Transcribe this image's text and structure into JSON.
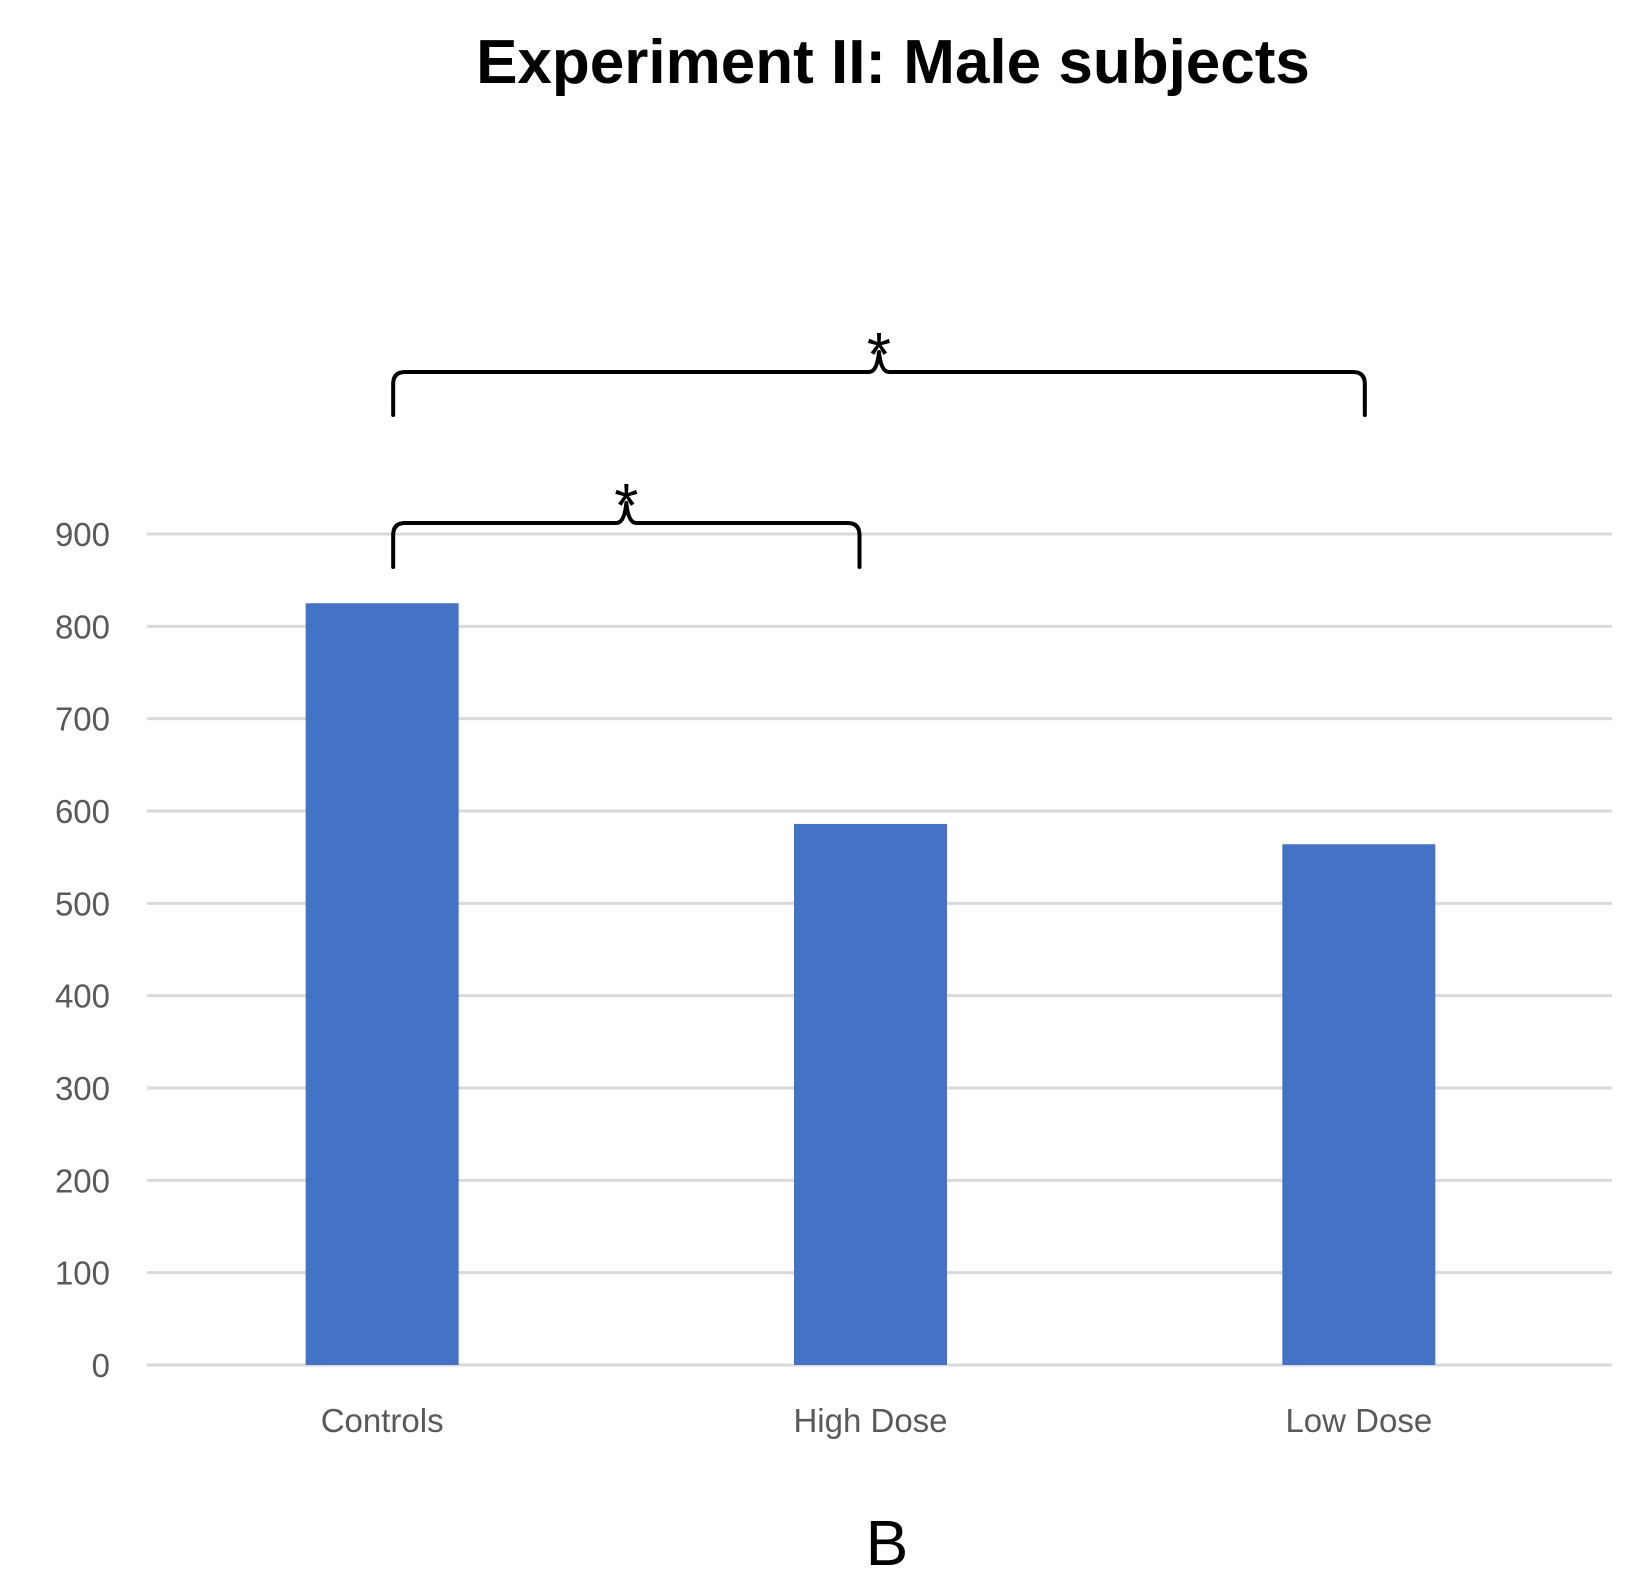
{
  "chart_data": {
    "type": "bar",
    "title": "Experiment II: Male subjects",
    "categories": [
      "Controls",
      "High Dose",
      "Low Dose"
    ],
    "values": [
      825,
      586,
      564
    ],
    "ylim": [
      0,
      900
    ],
    "yticks": [
      0,
      100,
      200,
      300,
      400,
      500,
      600,
      700,
      800,
      900
    ],
    "grid": true,
    "bar_color": "#4472C4",
    "panel_label": "B",
    "significance": [
      {
        "from": "Controls",
        "to": "High Dose",
        "label": "*"
      },
      {
        "from": "Controls",
        "to": "Low Dose",
        "label": "*"
      }
    ]
  }
}
